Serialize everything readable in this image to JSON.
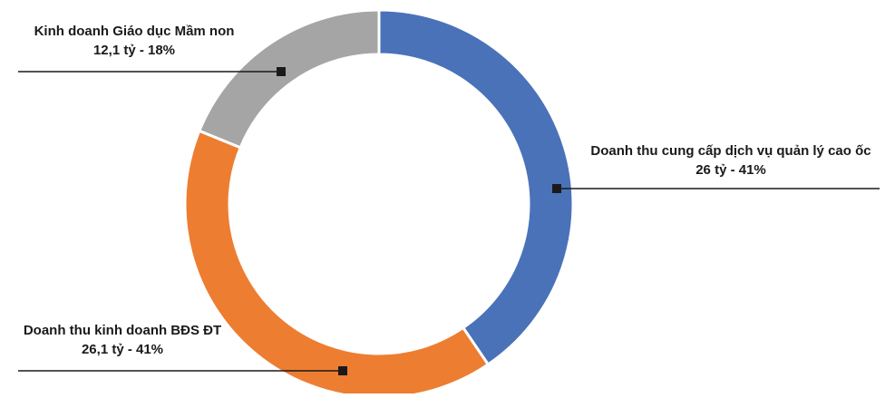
{
  "chart_data": {
    "type": "pie",
    "donut": true,
    "slices": [
      {
        "name": "Doanh thu cung cấp dịch vụ quản lý cao ốc",
        "value": 26,
        "label": "26 tỷ - 41%",
        "color": "#4A72B8"
      },
      {
        "name": "Doanh thu kinh doanh BĐS ĐT",
        "value": 26.1,
        "label": "26,1 tỷ - 41%",
        "color": "#ED7D31"
      },
      {
        "name": "Kinh doanh Giáo dục Mầm non",
        "value": 12.1,
        "label": "12,1 tỷ - 18%",
        "color": "#A5A5A5"
      }
    ],
    "start_angle_deg": 0,
    "direction": "clockwise",
    "legend": "none",
    "title": ""
  }
}
